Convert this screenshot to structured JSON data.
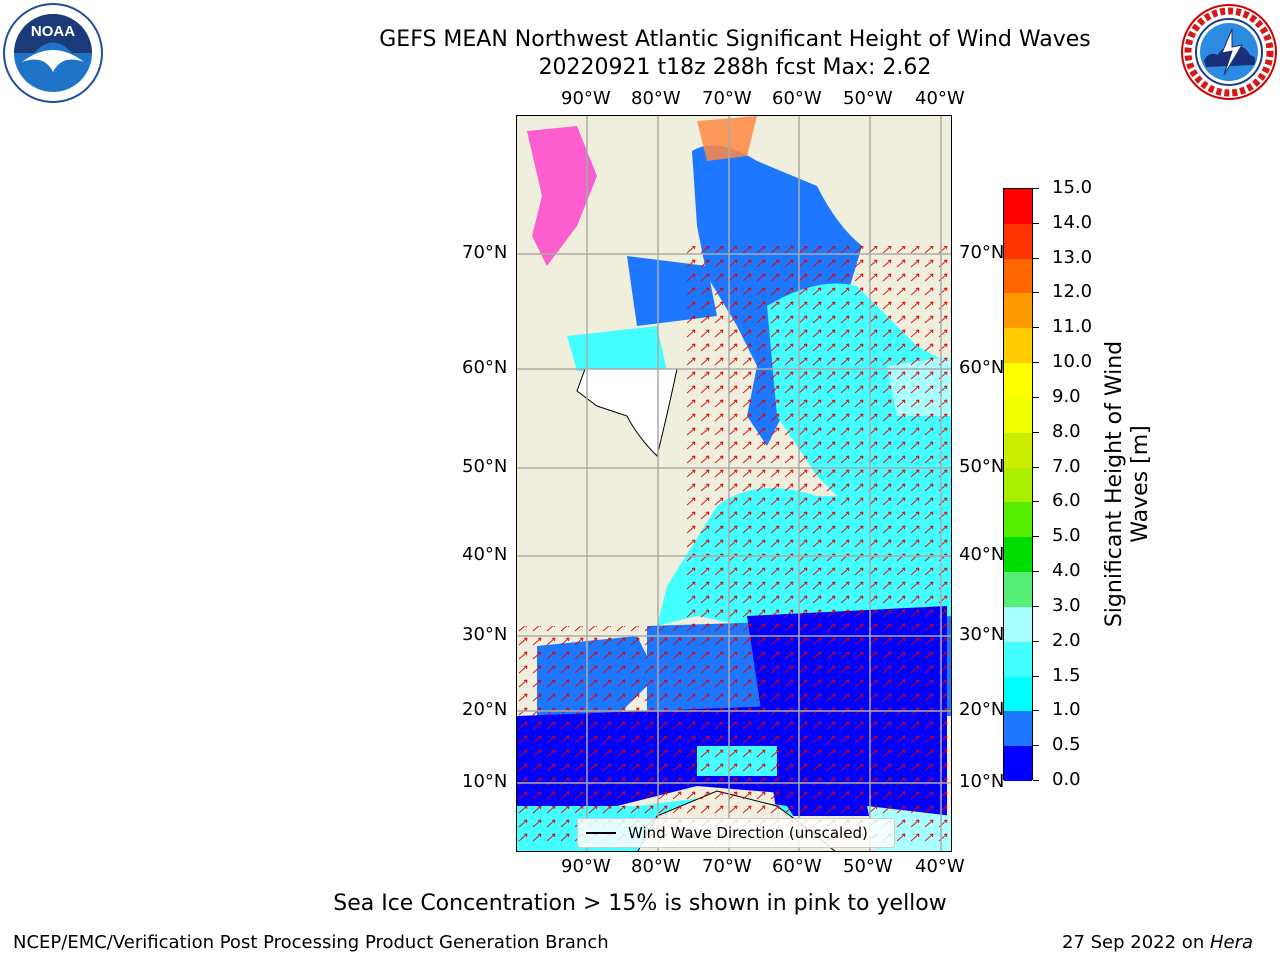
{
  "title": {
    "line1": "GEFS MEAN Northwest Atlantic Significant Height of Wind Waves",
    "line2": "20220921 t18z 288h fcst   Max: 2.62"
  },
  "map": {
    "lon_ticks": [
      "90°W",
      "80°W",
      "70°W",
      "60°W",
      "50°W",
      "40°W"
    ],
    "lat_ticks": [
      "70°N",
      "60°N",
      "50°N",
      "40°N",
      "30°N",
      "20°N",
      "10°N"
    ]
  },
  "colorbar": {
    "title_line1": "Significant Height of Wind",
    "title_line2": "Waves [m]",
    "ticks": [
      "0.0",
      "0.5",
      "1.0",
      "1.5",
      "2.0",
      "3.0",
      "4.0",
      "5.0",
      "6.0",
      "7.0",
      "8.0",
      "9.0",
      "10.0",
      "11.0",
      "12.0",
      "13.0",
      "14.0",
      "15.0"
    ],
    "colors": [
      "#0000ff",
      "#1e78ff",
      "#00ffff",
      "#44ffff",
      "#aaffff",
      "#55ee77",
      "#00dd00",
      "#55ee00",
      "#aaee00",
      "#ccee00",
      "#eeff00",
      "#ffff00",
      "#ffcc00",
      "#ff9900",
      "#ff6600",
      "#ff3300",
      "#ff0000"
    ]
  },
  "legend": {
    "label": "Wind Wave Direction (unscaled)"
  },
  "footer": {
    "note": "Sea Ice Concentration > 15% is shown in pink to yellow",
    "credit_left": "NCEP/EMC/Verification Post Processing Product Generation Branch",
    "date": "27 Sep 2022 on",
    "host": "Hera"
  },
  "logos": {
    "noaa_text": "NOAA",
    "nws_text": "NATIONAL WEATHER SERVICE"
  }
}
